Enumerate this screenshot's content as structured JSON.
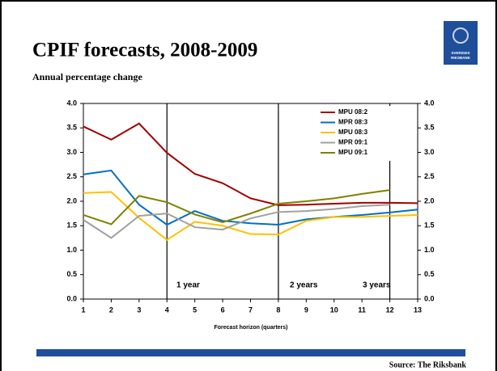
{
  "chart_data": {
    "type": "line",
    "title": "CPIF forecasts, 2008-2009",
    "subtitle": "Annual percentage change",
    "x_label": "Forecast horizon (quarters)",
    "source": "Source: The Riksbank",
    "logo_text": [
      "SVERIGES",
      "RIKSBANK"
    ],
    "x": [
      1,
      2,
      3,
      4,
      5,
      6,
      7,
      8,
      9,
      10,
      11,
      12,
      13
    ],
    "xlim": [
      1,
      13
    ],
    "xticks": [
      1,
      2,
      3,
      4,
      5,
      6,
      7,
      8,
      9,
      10,
      11,
      12,
      13
    ],
    "ylim": [
      0,
      4
    ],
    "yticks": [
      {
        "value": 0,
        "label": "0.0"
      },
      {
        "value": 0.5,
        "label": "0.5"
      },
      {
        "value": 1,
        "label": "1.0"
      },
      {
        "value": 1.5,
        "label": "1.5"
      },
      {
        "value": 2,
        "label": "2.0"
      },
      {
        "value": 2.5,
        "label": "2.5"
      },
      {
        "value": 3,
        "label": "3.0"
      },
      {
        "value": 3.5,
        "label": "3.5"
      },
      {
        "value": 4,
        "label": "4.0"
      }
    ],
    "y2lim": [
      0,
      4
    ],
    "y2ticks": [
      {
        "value": 0,
        "label": "0.0"
      },
      {
        "value": 0.5,
        "label": "0.5"
      },
      {
        "value": 1,
        "label": "1.0"
      },
      {
        "value": 1.5,
        "label": "1.5"
      },
      {
        "value": 2,
        "label": "2.0"
      },
      {
        "value": 2.5,
        "label": "2.5"
      },
      {
        "value": 3,
        "label": "3.0"
      },
      {
        "value": 3.5,
        "label": "3.5"
      },
      {
        "value": 4,
        "label": "4.0"
      }
    ],
    "vlines": [
      4,
      8,
      12
    ],
    "annotations": [
      "1 year",
      "2 years",
      "3 years"
    ],
    "legend": "upper right",
    "series": [
      {
        "name": "MPU 08:2",
        "color": "#a00000",
        "values": [
          3.53,
          3.26,
          3.59,
          2.99,
          2.56,
          2.37,
          2.06,
          1.92,
          1.93,
          1.95,
          1.97,
          1.97,
          1.96
        ]
      },
      {
        "name": "MPR 08:3",
        "color": "#0070c0",
        "values": [
          2.55,
          2.63,
          1.93,
          1.52,
          1.8,
          1.6,
          1.55,
          1.52,
          1.63,
          1.68,
          1.72,
          1.77,
          1.83
        ]
      },
      {
        "name": "MPU 08:3",
        "color": "#ffc000",
        "values": [
          2.17,
          2.19,
          1.66,
          1.21,
          1.58,
          1.5,
          1.33,
          1.32,
          1.6,
          1.68,
          1.68,
          1.7,
          1.72
        ]
      },
      {
        "name": "MPR 09:1",
        "color": "#a0a0a0",
        "values": [
          1.62,
          1.25,
          1.7,
          1.75,
          1.47,
          1.42,
          1.65,
          1.78,
          1.8,
          1.84,
          1.9,
          1.93,
          null
        ]
      },
      {
        "name": "MPU 09:1",
        "color": "#808000",
        "values": [
          1.72,
          1.53,
          2.11,
          1.98,
          1.73,
          1.57,
          1.75,
          1.95,
          2.0,
          2.06,
          2.15,
          2.23,
          null
        ]
      }
    ]
  }
}
